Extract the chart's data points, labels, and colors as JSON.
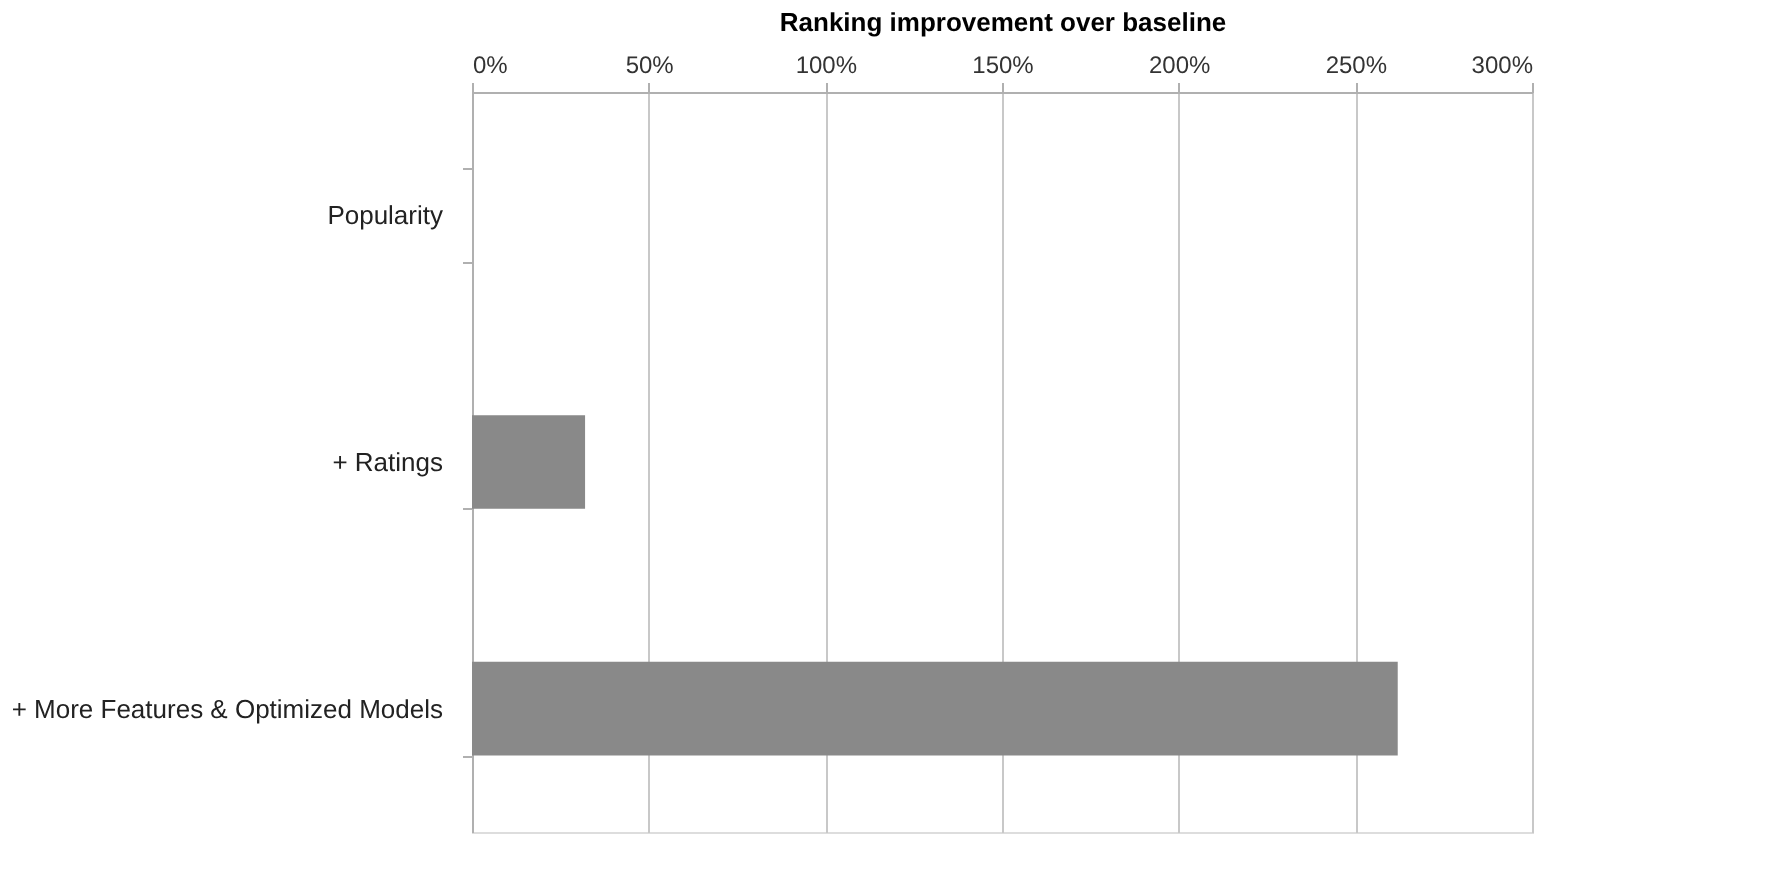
{
  "chart_data": {
    "type": "bar",
    "orientation": "horizontal",
    "xlabel": "Ranking improvement over baseline",
    "categories": [
      "Popularity",
      "+ Ratings",
      "+ More Features & Optimized Models"
    ],
    "values": [
      0,
      32,
      262
    ],
    "color": "#898989",
    "xlim": [
      0,
      300
    ],
    "xticks": [
      {
        "value": 0,
        "label": "0%"
      },
      {
        "value": 50,
        "label": "50%"
      },
      {
        "value": 100,
        "label": "100%"
      },
      {
        "value": 150,
        "label": "150%"
      },
      {
        "value": 200,
        "label": "200%"
      },
      {
        "value": 250,
        "label": "250%"
      },
      {
        "value": 300,
        "label": "300%"
      }
    ],
    "grid": "x"
  }
}
